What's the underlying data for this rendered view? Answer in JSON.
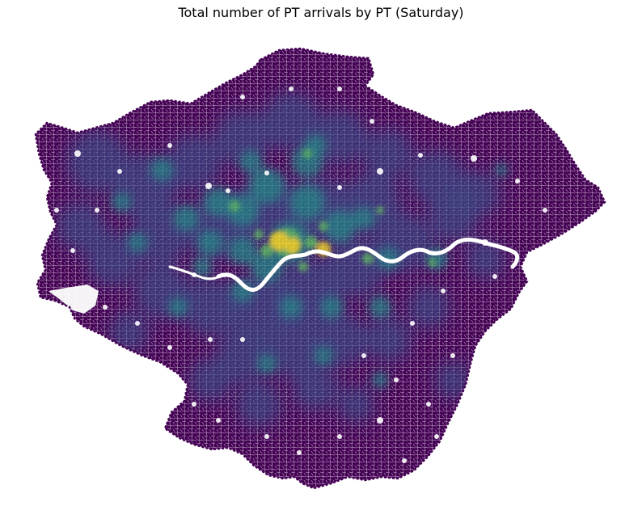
{
  "figure": {
    "title": "Total number of PT arrivals by PT (Saturday)"
  },
  "map": {
    "region": "Greater London",
    "feature": "street network",
    "colormap": "viridis",
    "background": "#ffffff",
    "palette": {
      "low": "#440154",
      "low_mid": "#3b528b",
      "mid": "#21918c",
      "high_mid": "#5ec962",
      "high": "#fde725"
    },
    "river": "River Thames",
    "river_color": "#ffffff"
  }
}
